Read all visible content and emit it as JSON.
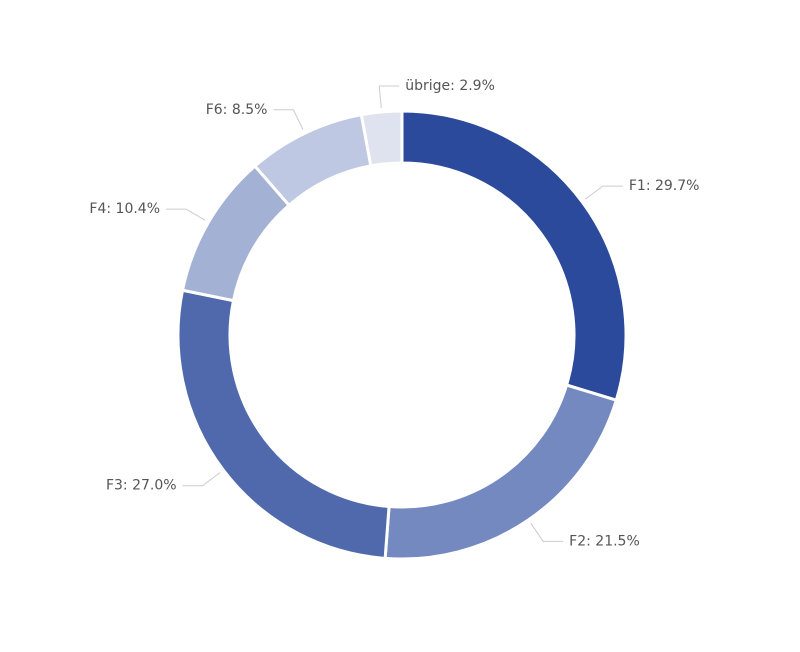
{
  "chart_data": {
    "type": "donut",
    "values": [
      29.7,
      21.5,
      27.0,
      10.4,
      8.5,
      2.9
    ],
    "value_labels": [
      "F1: 29.7%",
      "F2: 21.5%",
      "F3: 27.0%",
      "F4: 10.4%",
      "F6: 8.5%",
      "übrige: 2.9%"
    ],
    "colors": [
      "#2c4a9b",
      "#7489bf",
      "#4f69ac",
      "#a3b1d4",
      "#bec8e3",
      "#dfe3f0"
    ]
  }
}
